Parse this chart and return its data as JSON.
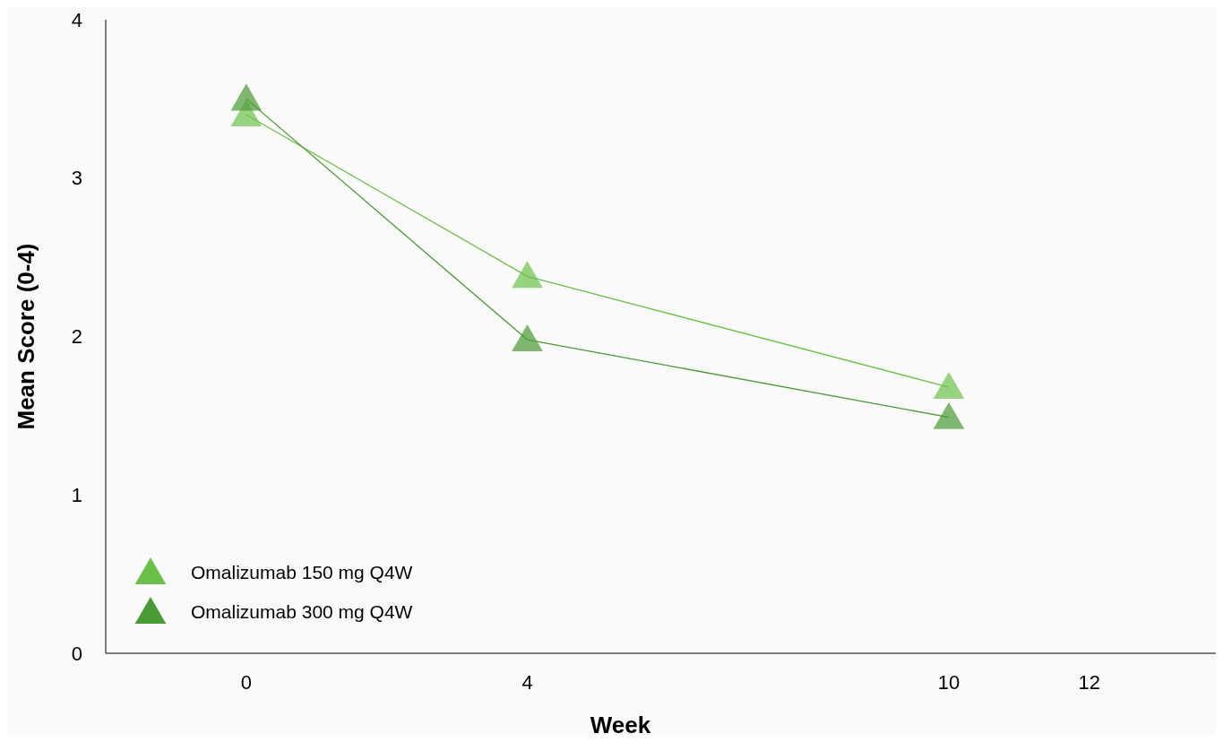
{
  "chart_data": {
    "type": "line",
    "xlabel": "Week",
    "ylabel": "Mean Score (0-4)",
    "x": [
      0,
      4,
      10
    ],
    "series": [
      {
        "name": "Omalizumab 150 mg Q4W",
        "color": "#6cc04a",
        "values": [
          3.4,
          2.38,
          1.68
        ]
      },
      {
        "name": "Omalizumab 300 mg Q4W",
        "color": "#4a9a36",
        "values": [
          3.5,
          1.98,
          1.49
        ]
      }
    ],
    "xlim": [
      -2,
      13.8
    ],
    "xticks": [
      0,
      4,
      10,
      12
    ],
    "ylim": [
      0,
      4
    ],
    "yticks": [
      0,
      1,
      2,
      3,
      4
    ],
    "grid": false,
    "legend": "bottom left",
    "marker": "triangle",
    "line_style": "solid"
  }
}
